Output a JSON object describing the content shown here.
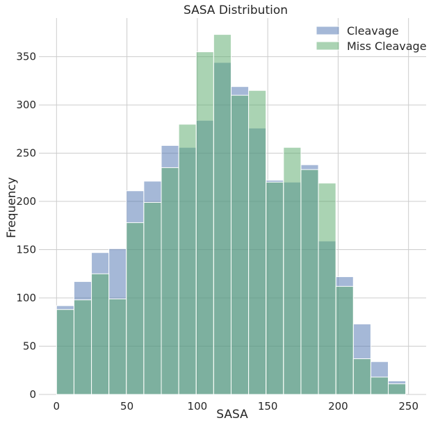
{
  "chart_data": {
    "type": "bar",
    "title": "SASA Distribution",
    "xlabel": "SASA",
    "ylabel": "Frequency",
    "xlim": [
      -12.5,
      262.5
    ],
    "ylim": [
      0,
      390
    ],
    "xticks": [
      0,
      50,
      100,
      150,
      200,
      250
    ],
    "yticks": [
      0,
      50,
      100,
      150,
      200,
      250,
      300,
      350
    ],
    "grid": true,
    "legend_position": "top-right",
    "bin_edges": [
      0,
      12.4,
      24.8,
      37.2,
      49.6,
      62.0,
      74.4,
      86.8,
      99.2,
      111.6,
      124.0,
      136.4,
      148.8,
      161.2,
      173.6,
      186.0,
      198.4,
      210.8,
      223.2,
      235.6,
      248.0
    ],
    "series": [
      {
        "name": "Cleavage",
        "color": "#4c72b0",
        "alpha": 0.5,
        "values": [
          92,
          117,
          147,
          151,
          211,
          221,
          258,
          256,
          284,
          344,
          319,
          276,
          222,
          220,
          238,
          159,
          122,
          73,
          34,
          14
        ]
      },
      {
        "name": "Miss Cleavage",
        "color": "#55a868",
        "alpha": 0.5,
        "values": [
          88,
          98,
          125,
          99,
          178,
          199,
          235,
          280,
          355,
          373,
          310,
          315,
          220,
          256,
          233,
          219,
          112,
          37,
          18,
          11
        ]
      }
    ]
  }
}
